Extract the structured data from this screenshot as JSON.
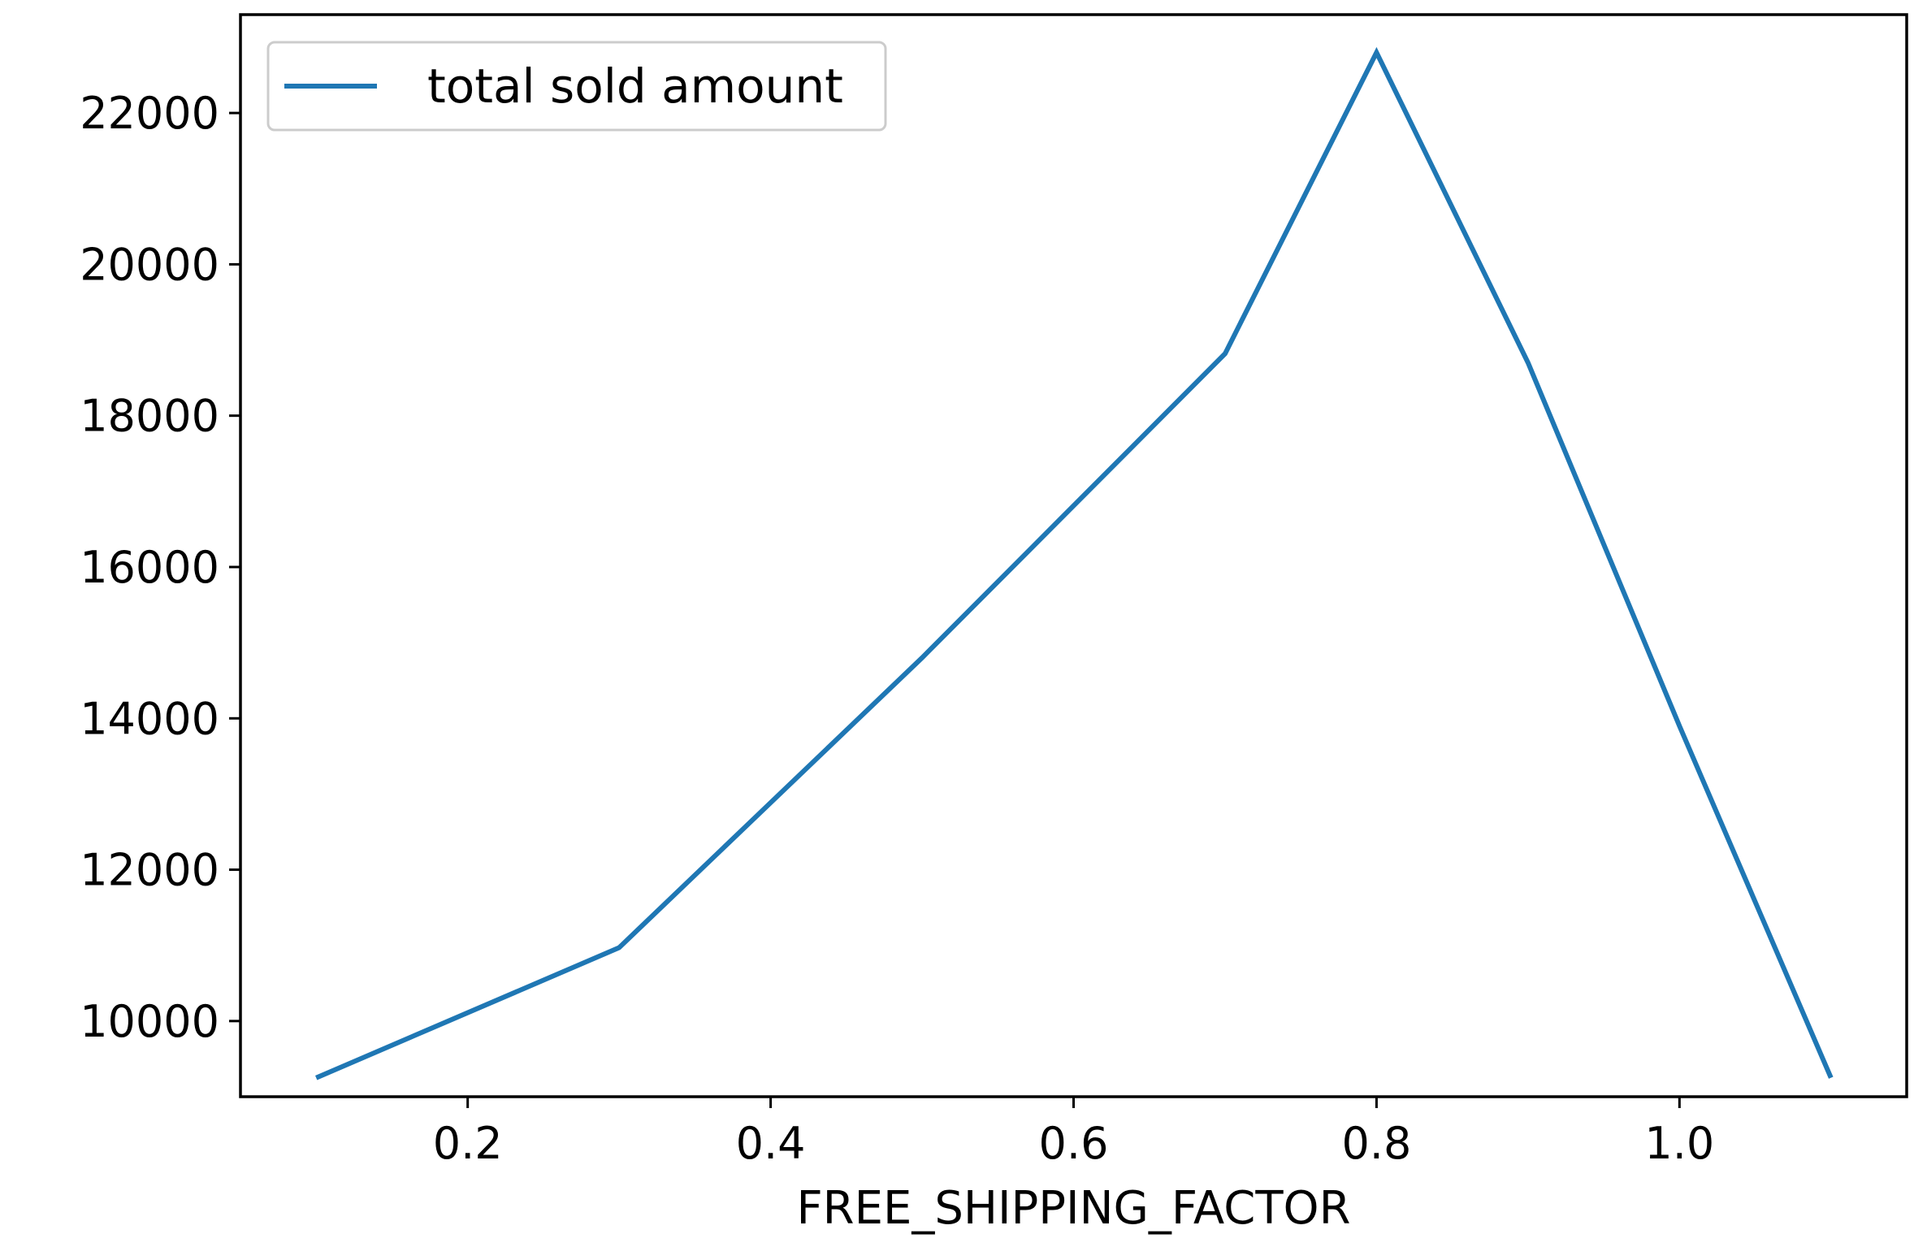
{
  "chart_data": {
    "type": "line",
    "title": "",
    "xlabel": "FREE_SHIPPING_FACTOR",
    "ylabel": "",
    "xlim": [
      0.05,
      1.15
    ],
    "ylim": [
      9000,
      23300
    ],
    "xticks": [
      0.2,
      0.4,
      0.6,
      0.8,
      1.0
    ],
    "xtick_labels": [
      "0.2",
      "0.4",
      "0.6",
      "0.8",
      "1.0"
    ],
    "yticks": [
      10000,
      12000,
      14000,
      16000,
      18000,
      20000,
      22000
    ],
    "ytick_labels": [
      "10000",
      "12000",
      "14000",
      "16000",
      "18000",
      "20000",
      "22000"
    ],
    "grid": false,
    "legend": "upper-left",
    "series": [
      {
        "name": "total sold amount",
        "color": "#1f77b4",
        "x": [
          0.1,
          0.3,
          0.5,
          0.7,
          0.8,
          0.9,
          1.0,
          1.1
        ],
        "y": [
          9250,
          10970,
          14800,
          18820,
          22800,
          18700,
          13900,
          9250
        ]
      }
    ]
  }
}
